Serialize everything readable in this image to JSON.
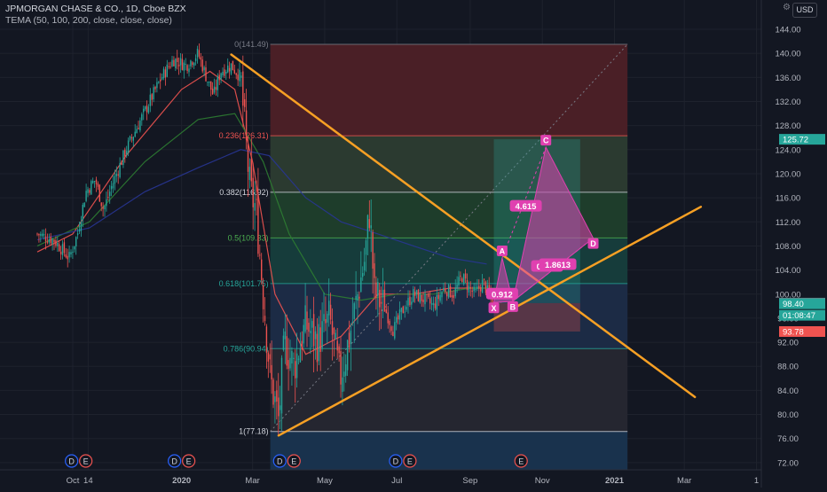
{
  "header": {
    "symbol_line": "JPMORGAN CHASE & CO., 1D, Cboe BZX",
    "indicator_line": "TEMA (50, 100, 200, close, close, close)",
    "currency": "USD"
  },
  "colors": {
    "background": "#131722",
    "up": "#26a69a",
    "down": "#ef5350",
    "trendline": "#f7a024",
    "pattern": "#e040b0",
    "tema_50": "#ef5350",
    "tema_100": "#2e7d32",
    "tema_200": "#283593"
  },
  "chart_data": {
    "type": "candlestick",
    "y_axis": {
      "min": 71,
      "max": 146,
      "ticks": [
        "144.00",
        "140.00",
        "136.00",
        "132.00",
        "128.00",
        "124.00",
        "120.00",
        "116.00",
        "112.00",
        "108.00",
        "104.00",
        "100.00",
        "96.00",
        "92.00",
        "88.00",
        "84.00",
        "80.00",
        "76.00",
        "72.00"
      ]
    },
    "x_axis": {
      "ticks": [
        {
          "label": "Oct",
          "x": "2019-10-01"
        },
        {
          "label": "14",
          "x": "2019-10-14"
        },
        {
          "label": "2020",
          "x": "2020-01-01",
          "bold": true
        },
        {
          "label": "Mar",
          "x": "2020-03-01"
        },
        {
          "label": "May",
          "x": "2020-05-01"
        },
        {
          "label": "Jul",
          "x": "2020-07-01"
        },
        {
          "label": "Sep",
          "x": "2020-09-01"
        },
        {
          "label": "Nov",
          "x": "2020-11-01"
        },
        {
          "label": "2021",
          "x": "2021-01-01",
          "bold": true
        },
        {
          "label": "Mar",
          "x": "2021-03-01"
        },
        {
          "label": "1",
          "x": "2021-05-01"
        }
      ]
    },
    "price_labels": [
      {
        "value": "125.72",
        "color": "#26a69a"
      },
      {
        "value": "98.50",
        "color": "#787b86"
      },
      {
        "value": "98.40",
        "color": "#26a69a"
      },
      {
        "value": "01:08:47",
        "color": "#26a69a",
        "time_for": "98.40"
      },
      {
        "value": "93.78",
        "color": "#ef5350"
      }
    ],
    "fibonacci": {
      "start": "2020-03-16",
      "end": "2021-01-12",
      "levels": [
        {
          "ratio": 0,
          "label": "0(141.49)",
          "price": 141.49,
          "color": "#787b86",
          "fill": "#4a1f26"
        },
        {
          "ratio": 0.236,
          "label": "0.236(126.31)",
          "price": 126.31,
          "color": "#ef5350",
          "fill": "#2b3a30"
        },
        {
          "ratio": 0.382,
          "label": "0.382(116.92)",
          "price": 116.92,
          "color": "#d1d4dc",
          "fill": "#1e3d2b"
        },
        {
          "ratio": 0.5,
          "label": "0.5(109.33)",
          "price": 109.33,
          "color": "#4caf50",
          "fill": "#163c3b"
        },
        {
          "ratio": 0.618,
          "label": "0.618(101.75)",
          "price": 101.75,
          "color": "#26a69a",
          "fill": "#1c2b45"
        },
        {
          "ratio": 0.786,
          "label": "0.786(90.94)",
          "price": 90.94,
          "color": "#26a69a",
          "fill": "#252630"
        },
        {
          "ratio": 1,
          "label": "1(77.18)",
          "price": 77.18,
          "color": "#d1d4dc",
          "fill": "#19324d"
        }
      ]
    },
    "trendlines": [
      {
        "from": {
          "x": "2020-02-12",
          "y": 139.8
        },
        "to": {
          "x": "2021-03-10",
          "y": 82.9
        }
      },
      {
        "from": {
          "x": "2020-03-23",
          "y": 76.5
        },
        "to": {
          "x": "2021-03-15",
          "y": 114.5
        }
      }
    ],
    "harmonic_pattern": {
      "points": [
        {
          "label": "X",
          "x": "2020-09-21",
          "y": 98.6
        },
        {
          "label": "A",
          "x": "2020-09-28",
          "y": 106.0
        },
        {
          "label": "B",
          "x": "2020-10-07",
          "y": 98.8
        },
        {
          "label": "C",
          "x": "2020-11-04",
          "y": 124.4
        },
        {
          "label": "D",
          "x": "2020-12-14",
          "y": 109.3
        }
      ],
      "ratios": [
        {
          "label": "0.912",
          "x": "2020-09-28",
          "y": 100.0
        },
        {
          "label": "4.615",
          "x": "2020-10-18",
          "y": 114.6
        },
        {
          "label": "0.842",
          "x": "2020-11-05",
          "y": 104.6
        },
        {
          "label": "1.8613",
          "x": "2020-11-14",
          "y": 104.9
        }
      ]
    },
    "long_position": {
      "start": "2020-09-21",
      "end": "2020-12-03",
      "entry": 98.5,
      "target": 125.72,
      "stop": 93.78
    },
    "tema_series": [
      {
        "period": 50,
        "points": [
          [
            "2019-09-01",
            107
          ],
          [
            "2019-10-01",
            110
          ],
          [
            "2019-11-15",
            123
          ],
          [
            "2020-01-01",
            134
          ],
          [
            "2020-01-25",
            137
          ],
          [
            "2020-02-15",
            134
          ],
          [
            "2020-03-01",
            122
          ],
          [
            "2020-03-20",
            100
          ],
          [
            "2020-04-15",
            90
          ],
          [
            "2020-05-15",
            93
          ],
          [
            "2020-06-15",
            100
          ],
          [
            "2020-07-15",
            100
          ],
          [
            "2020-08-15",
            101
          ],
          [
            "2020-09-15",
            101
          ],
          [
            "2020-09-25",
            100
          ]
        ]
      },
      {
        "period": 100,
        "points": [
          [
            "2019-09-01",
            108
          ],
          [
            "2019-10-15",
            112
          ],
          [
            "2019-12-01",
            122
          ],
          [
            "2020-01-15",
            129
          ],
          [
            "2020-02-15",
            130
          ],
          [
            "2020-03-10",
            122
          ],
          [
            "2020-04-01",
            110
          ],
          [
            "2020-05-01",
            100
          ],
          [
            "2020-06-01",
            99
          ],
          [
            "2020-07-01",
            100
          ],
          [
            "2020-08-01",
            100
          ],
          [
            "2020-09-01",
            101
          ],
          [
            "2020-09-25",
            101
          ]
        ]
      },
      {
        "period": 200,
        "points": [
          [
            "2019-09-01",
            109
          ],
          [
            "2019-10-15",
            111
          ],
          [
            "2019-12-01",
            117
          ],
          [
            "2020-01-15",
            121
          ],
          [
            "2020-02-20",
            124
          ],
          [
            "2020-03-15",
            123
          ],
          [
            "2020-04-15",
            116
          ],
          [
            "2020-05-15",
            112
          ],
          [
            "2020-06-15",
            110
          ],
          [
            "2020-07-15",
            108
          ],
          [
            "2020-08-15",
            106
          ],
          [
            "2020-09-15",
            105
          ]
        ]
      }
    ],
    "candle_anchors": [
      [
        "2019-09-01",
        110
      ],
      [
        "2019-09-15",
        109
      ],
      [
        "2019-09-28",
        106
      ],
      [
        "2019-10-05",
        110
      ],
      [
        "2019-10-12",
        117
      ],
      [
        "2019-10-20",
        119
      ],
      [
        "2019-10-27",
        114
      ],
      [
        "2019-11-03",
        118
      ],
      [
        "2019-11-15",
        124
      ],
      [
        "2019-11-25",
        128
      ],
      [
        "2019-12-05",
        132
      ],
      [
        "2019-12-15",
        136
      ],
      [
        "2019-12-25",
        139
      ],
      [
        "2020-01-05",
        138
      ],
      [
        "2020-01-15",
        140
      ],
      [
        "2020-01-22",
        136
      ],
      [
        "2020-01-28",
        133
      ],
      [
        "2020-02-03",
        137
      ],
      [
        "2020-02-12",
        138
      ],
      [
        "2020-02-20",
        136
      ],
      [
        "2020-02-24",
        126
      ],
      [
        "2020-02-28",
        117
      ],
      [
        "2020-03-04",
        114
      ],
      [
        "2020-03-10",
        100
      ],
      [
        "2020-03-16",
        86
      ],
      [
        "2020-03-23",
        79
      ],
      [
        "2020-03-28",
        92
      ],
      [
        "2020-04-05",
        88
      ],
      [
        "2020-04-15",
        95
      ],
      [
        "2020-04-25",
        92
      ],
      [
        "2020-05-05",
        96
      ],
      [
        "2020-05-14",
        86
      ],
      [
        "2020-05-22",
        93
      ],
      [
        "2020-05-28",
        99
      ],
      [
        "2020-06-04",
        106
      ],
      [
        "2020-06-08",
        114
      ],
      [
        "2020-06-12",
        100
      ],
      [
        "2020-06-20",
        98
      ],
      [
        "2020-06-28",
        94
      ],
      [
        "2020-07-05",
        97
      ],
      [
        "2020-07-15",
        100
      ],
      [
        "2020-07-25",
        99
      ],
      [
        "2020-08-01",
        98
      ],
      [
        "2020-08-10",
        101
      ],
      [
        "2020-08-18",
        100
      ],
      [
        "2020-08-25",
        103
      ],
      [
        "2020-08-31",
        101
      ],
      [
        "2020-09-05",
        100
      ],
      [
        "2020-09-12",
        102
      ],
      [
        "2020-09-20",
        98.4
      ]
    ],
    "event_markers": [
      {
        "x": "2019-10-06",
        "labels": [
          "D",
          "E"
        ]
      },
      {
        "x": "2020-01-01",
        "labels": [
          "D",
          "E"
        ]
      },
      {
        "x": "2020-03-30",
        "labels": [
          "D",
          "E"
        ]
      },
      {
        "x": "2020-07-06",
        "labels": [
          "D",
          "E"
        ]
      },
      {
        "x": "2020-10-14",
        "labels": [
          "E"
        ]
      }
    ]
  }
}
